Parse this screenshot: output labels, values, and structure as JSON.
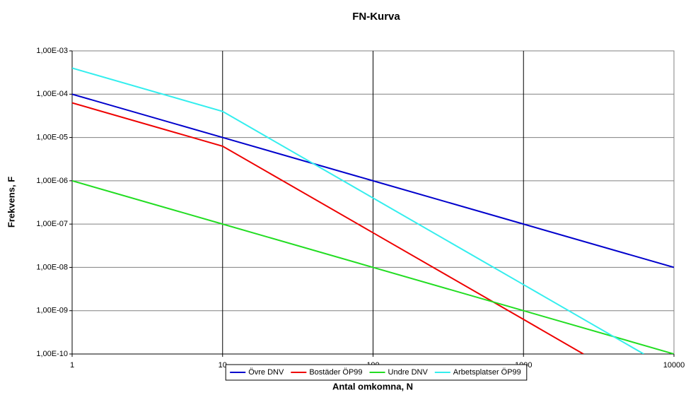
{
  "chart_data": {
    "type": "line",
    "title": "FN-Kurva",
    "x_label": "Antal omkomna, N",
    "y_label": "Frekvens, F",
    "xlog": true,
    "ylog": true,
    "xlim": [
      1,
      10000
    ],
    "ylim": [
      1e-10,
      0.001
    ],
    "xticks": [
      1,
      10,
      100,
      1000,
      10000
    ],
    "yticks": [
      {
        "value": 1e-10,
        "label": "1,00E-10"
      },
      {
        "value": 1e-09,
        "label": "1,00E-09"
      },
      {
        "value": 1e-08,
        "label": "1,00E-08"
      },
      {
        "value": 1e-07,
        "label": "1,00E-07"
      },
      {
        "value": 1e-06,
        "label": "1,00E-06"
      },
      {
        "value": 1e-05,
        "label": "1,00E-05"
      },
      {
        "value": 0.0001,
        "label": "1,00E-04"
      },
      {
        "value": 0.001,
        "label": "1,00E-03"
      }
    ],
    "grid": true,
    "legend": "bottom",
    "series": [
      {
        "name": "Övre DNV",
        "color": "#0000cc",
        "x": [
          1,
          10,
          100,
          1000,
          10000
        ],
        "values": [
          0.0001,
          1e-05,
          1e-06,
          1e-07,
          1e-08
        ]
      },
      {
        "name": "Bostäder ÖP99",
        "color": "#ee0000",
        "x": [
          1,
          10,
          100,
          1000,
          2500
        ],
        "values": [
          6.3e-05,
          6.3e-06,
          6.3e-08,
          6.3e-10,
          1e-10
        ]
      },
      {
        "name": "Undre DNV",
        "color": "#22dd22",
        "x": [
          1,
          10,
          100,
          1000,
          10000
        ],
        "values": [
          1e-06,
          1e-07,
          1e-08,
          1e-09,
          1e-10
        ]
      },
      {
        "name": "Arbetsplatser ÖP99",
        "color": "#33eeee",
        "x": [
          1,
          10,
          100,
          1000,
          6300
        ],
        "values": [
          0.0004,
          4e-05,
          4e-07,
          4e-09,
          1e-10
        ]
      }
    ]
  }
}
